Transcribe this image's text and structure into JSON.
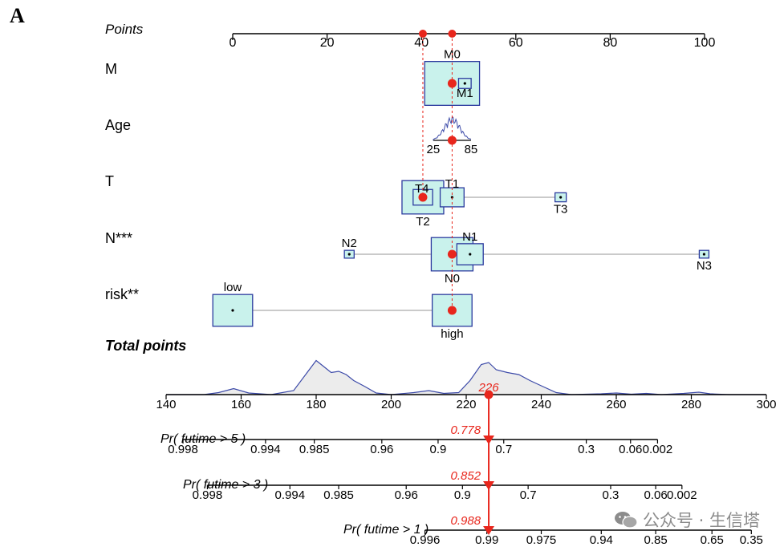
{
  "panel_label": "A",
  "watermark": {
    "text": "公众号 · 生信塔",
    "icon": "wechat-icon"
  },
  "colors": {
    "box_fill": "#c9f2ec",
    "box_stroke": "#2b3a9e",
    "marker": "#e8261c",
    "density_line": "#3c4aa8",
    "density_fill": "#ececec"
  },
  "chart_data": {
    "type": "nomogram",
    "points_axis": {
      "label": "Points",
      "range": [
        0,
        100
      ],
      "ticks": [
        0,
        20,
        40,
        60,
        80,
        100
      ]
    },
    "variables": [
      {
        "name": "M",
        "categories": [
          {
            "label": "M0",
            "points": 46.5,
            "weight": 0.95,
            "label_pos": "above"
          },
          {
            "label": "M1",
            "points": 49.2,
            "weight": 0.05,
            "label_pos": "below"
          }
        ]
      },
      {
        "name": "Age",
        "type": "continuous",
        "tick_labels": [
          "25",
          "85"
        ],
        "tick_points": [
          42.5,
          50.5
        ]
      },
      {
        "name": "T",
        "categories": [
          {
            "label": "T4",
            "points": 40.3,
            "weight": 0.12,
            "label_pos": "left"
          },
          {
            "label": "T2",
            "points": 40.3,
            "weight": 0.55,
            "label_pos": "below"
          },
          {
            "label": "T1",
            "points": 46.5,
            "weight": 0.18,
            "label_pos": "above"
          },
          {
            "label": "T3",
            "points": 69.5,
            "weight": 0.04,
            "label_pos": "below"
          }
        ]
      },
      {
        "name": "N***",
        "categories": [
          {
            "label": "N2",
            "points": 24.7,
            "weight": 0.03,
            "label_pos": "above"
          },
          {
            "label": "N0",
            "points": 46.5,
            "weight": 0.55,
            "label_pos": "below"
          },
          {
            "label": "N1",
            "points": 50.3,
            "weight": 0.22,
            "label_pos": "above"
          },
          {
            "label": "N3",
            "points": 99.9,
            "weight": 0.02,
            "label_pos": "below"
          }
        ]
      },
      {
        "name": "risk**",
        "categories": [
          {
            "label": "low",
            "points": 0,
            "weight": 0.5,
            "label_pos": "above"
          },
          {
            "label": "high",
            "points": 46.5,
            "weight": 0.5,
            "label_pos": "below"
          }
        ]
      }
    ],
    "total_points_axis": {
      "label": "Total points",
      "range": [
        140,
        300
      ],
      "ticks": [
        140,
        160,
        180,
        200,
        220,
        240,
        260,
        280,
        300
      ]
    },
    "total_points_density": [
      [
        140,
        0
      ],
      [
        150,
        0
      ],
      [
        154,
        0.05
      ],
      [
        158,
        0.15
      ],
      [
        162,
        0.04
      ],
      [
        168,
        0
      ],
      [
        174,
        0.1
      ],
      [
        178,
        0.6
      ],
      [
        180,
        0.85
      ],
      [
        182,
        0.7
      ],
      [
        184,
        0.55
      ],
      [
        186,
        0.58
      ],
      [
        188,
        0.5
      ],
      [
        190,
        0.35
      ],
      [
        193,
        0.2
      ],
      [
        196,
        0.04
      ],
      [
        200,
        0
      ],
      [
        206,
        0.05
      ],
      [
        210,
        0.1
      ],
      [
        214,
        0.03
      ],
      [
        218,
        0.05
      ],
      [
        221,
        0.35
      ],
      [
        224,
        0.75
      ],
      [
        226,
        0.8
      ],
      [
        228,
        0.62
      ],
      [
        231,
        0.55
      ],
      [
        234,
        0.5
      ],
      [
        237,
        0.35
      ],
      [
        240,
        0.22
      ],
      [
        244,
        0.05
      ],
      [
        248,
        0
      ],
      [
        256,
        0.02
      ],
      [
        260,
        0.04
      ],
      [
        264,
        0.01
      ],
      [
        268,
        0.03
      ],
      [
        272,
        0
      ],
      [
        278,
        0.03
      ],
      [
        282,
        0.06
      ],
      [
        285,
        0.02
      ],
      [
        290,
        0
      ],
      [
        300,
        0
      ]
    ],
    "probability_axes": [
      {
        "label": "Pr( futime > 5 )",
        "ticks": [
          {
            "label": "0.998",
            "total": 144.5
          },
          {
            "label": "0.994",
            "total": 166.5
          },
          {
            "label": "0.985",
            "total": 179.5
          },
          {
            "label": "0.96",
            "total": 197.5
          },
          {
            "label": "0.9",
            "total": 212.5
          },
          {
            "label": "0.7",
            "total": 230.0
          },
          {
            "label": "0.3",
            "total": 252.0
          },
          {
            "label": "0.06",
            "total": 263.8
          },
          {
            "label": "0.002",
            "total": 271.0
          }
        ],
        "predicted": "0.778"
      },
      {
        "label": "Pr( futime > 3 )",
        "ticks": [
          {
            "label": "0.998",
            "total": 151.0
          },
          {
            "label": "0.994",
            "total": 173.0
          },
          {
            "label": "0.985",
            "total": 186.0
          },
          {
            "label": "0.96",
            "total": 204.0
          },
          {
            "label": "0.9",
            "total": 219.0
          },
          {
            "label": "0.7",
            "total": 236.5
          },
          {
            "label": "0.3",
            "total": 258.5
          },
          {
            "label": "0.06",
            "total": 270.5
          },
          {
            "label": "0.002",
            "total": 277.5
          }
        ],
        "predicted": "0.852"
      },
      {
        "label": "Pr( futime > 1 )",
        "ticks": [
          {
            "label": "0.996",
            "total": 209.0
          },
          {
            "label": "0.99",
            "total": 225.5
          },
          {
            "label": "0.975",
            "total": 240.0
          },
          {
            "label": "0.94",
            "total": 256.0
          },
          {
            "label": "0.85",
            "total": 270.5
          },
          {
            "label": "0.65",
            "total": 285.5
          },
          {
            "label": "0.35",
            "total": 296.0
          }
        ],
        "predicted": "0.988"
      }
    ],
    "patient": {
      "total_points": "226",
      "variable_points": {
        "M": 46.5,
        "Age": 46.5,
        "T": 40.3,
        "N***": 46.5,
        "risk**": 46.5
      }
    }
  }
}
